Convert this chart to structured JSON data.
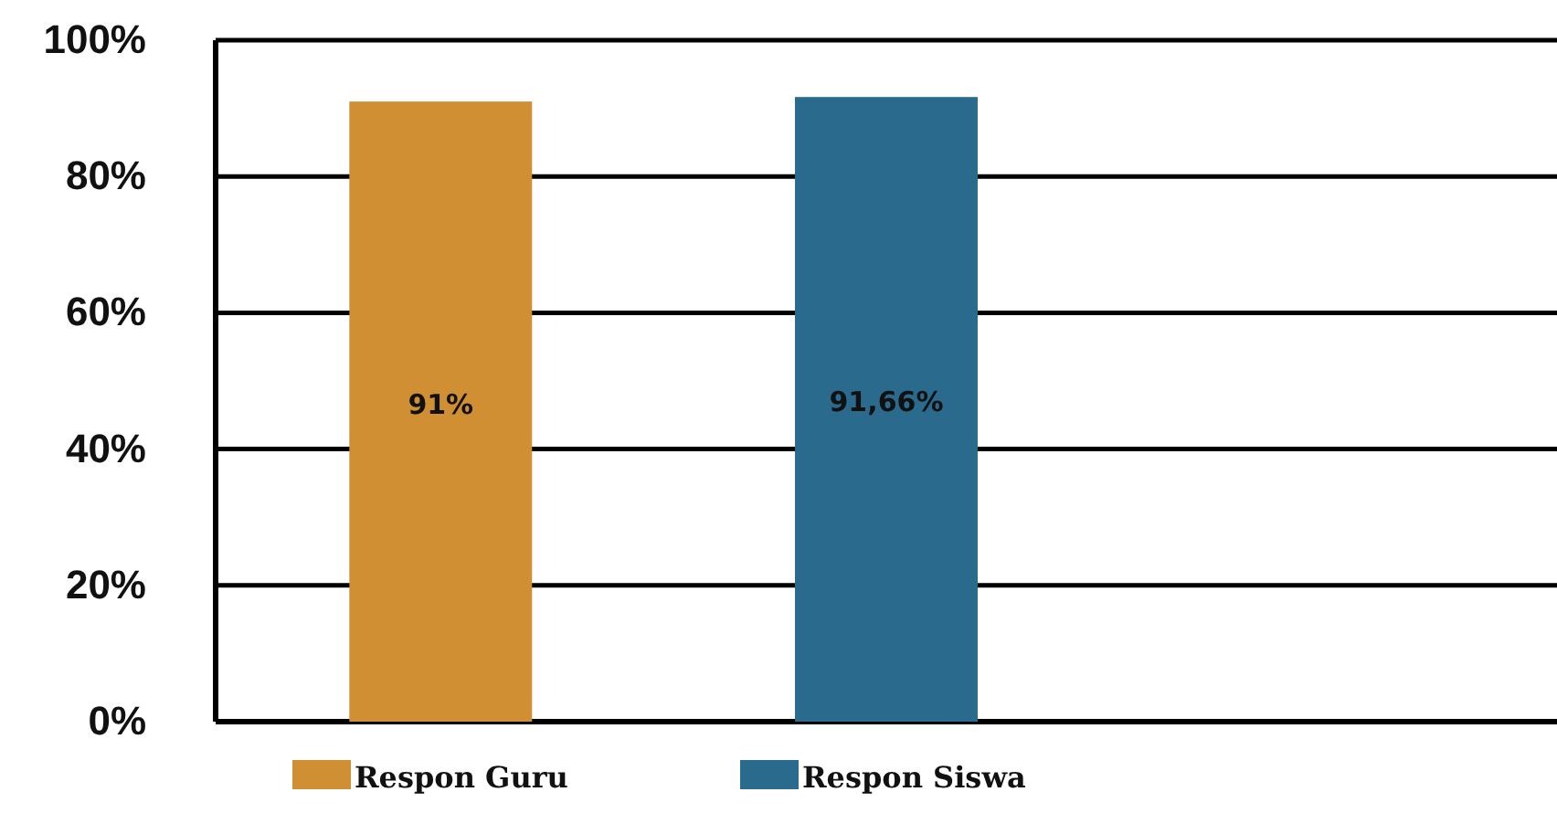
{
  "chart_data": {
    "type": "bar",
    "categories": [
      null,
      null,
      null
    ],
    "series": [
      {
        "name": "Respon Guru",
        "color": "#d18f33",
        "values": [
          91,
          null,
          null
        ],
        "value_labels": [
          "91%",
          null,
          null
        ]
      },
      {
        "name": "Respon Siswa",
        "color": "#2a6a8c",
        "values": [
          null,
          91.66,
          null
        ],
        "value_labels": [
          null,
          "91,66%",
          null
        ]
      }
    ],
    "ylim": [
      0,
      100
    ],
    "yticks": [
      {
        "value": 0,
        "label": "0%"
      },
      {
        "value": 20,
        "label": "20%"
      },
      {
        "value": 40,
        "label": "40%"
      },
      {
        "value": 60,
        "label": "60%"
      },
      {
        "value": 80,
        "label": "80%"
      },
      {
        "value": 100,
        "label": "100%"
      }
    ],
    "grid": "y",
    "legend": "bottom",
    "tick_labels": "y"
  }
}
